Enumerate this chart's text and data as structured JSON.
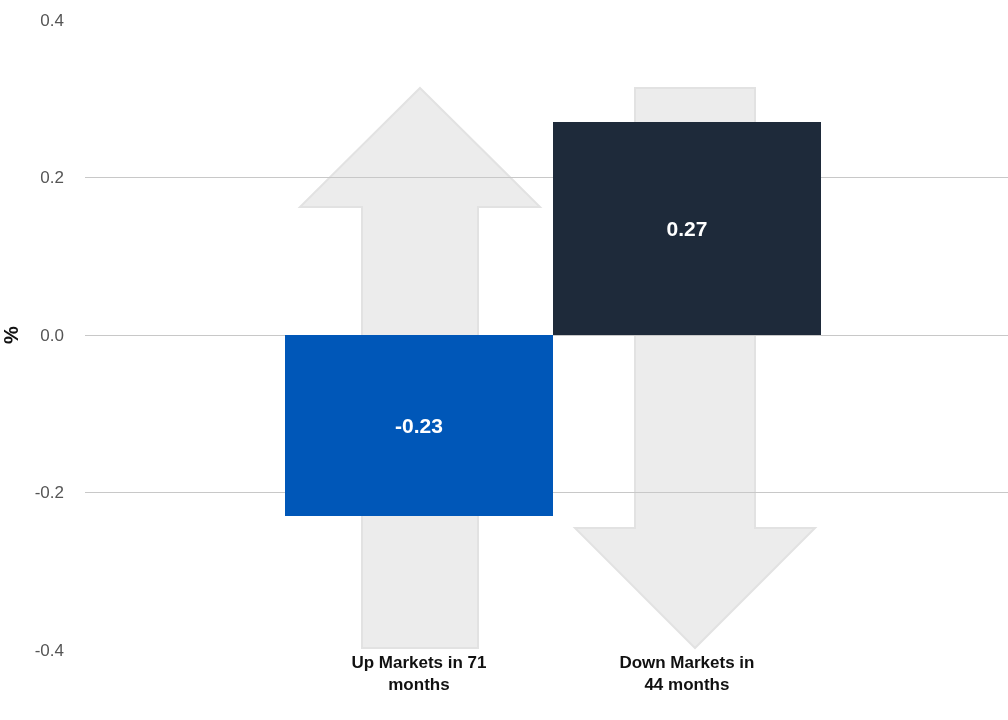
{
  "chart_data": {
    "type": "bar",
    "categories": [
      "Up Markets in 71 months",
      "Down Markets in 44 months"
    ],
    "values": [
      -0.23,
      0.27
    ],
    "colors": [
      "#0057b8",
      "#1e2a3a"
    ],
    "ylabel": "%",
    "ylim": [
      -0.4,
      0.4
    ],
    "yticks": [
      -0.4,
      -0.2,
      {
        "value": 0,
        "label": "0.0"
      },
      0.2,
      0.4
    ],
    "grid": "y",
    "data_labels": true
  }
}
